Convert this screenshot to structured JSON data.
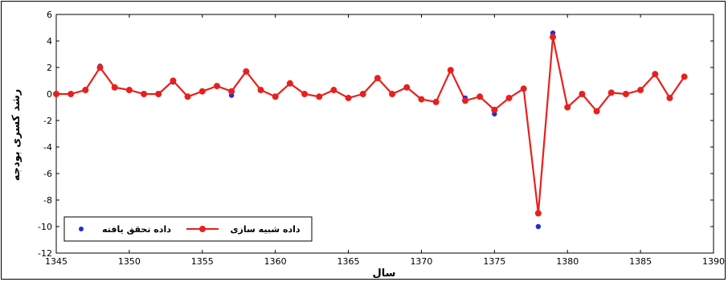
{
  "chart_data": {
    "type": "line",
    "xlabel": "سال",
    "ylabel": "رشد کسری بودجه",
    "xlim": [
      1345,
      1390
    ],
    "ylim": [
      -12,
      6
    ],
    "xticks": [
      1345,
      1350,
      1355,
      1360,
      1365,
      1370,
      1375,
      1380,
      1385,
      1390
    ],
    "yticks": [
      -12,
      -10,
      -8,
      -6,
      -4,
      -2,
      0,
      2,
      4,
      6
    ],
    "grid": false,
    "legend_position": "bottom-left",
    "series": [
      {
        "name": "داده شبیه سازی",
        "style": "line-markers",
        "color": "#e8201d",
        "x": [
          1345,
          1346,
          1347,
          1348,
          1349,
          1350,
          1351,
          1352,
          1353,
          1354,
          1355,
          1356,
          1357,
          1358,
          1359,
          1360,
          1361,
          1362,
          1363,
          1364,
          1365,
          1366,
          1367,
          1368,
          1369,
          1370,
          1371,
          1372,
          1373,
          1374,
          1375,
          1376,
          1377,
          1378,
          1379,
          1380,
          1381,
          1382,
          1383,
          1384,
          1385,
          1386,
          1387,
          1388
        ],
        "y": [
          0,
          0,
          0.3,
          2,
          0.5,
          0.3,
          0,
          0,
          1,
          -0.2,
          0.2,
          0.6,
          0.2,
          1.7,
          0.3,
          -0.2,
          0.8,
          0,
          -0.2,
          0.3,
          -0.3,
          0,
          1.2,
          0,
          0.5,
          -0.4,
          -0.6,
          1.8,
          -0.5,
          -0.2,
          -1.2,
          -0.3,
          0.4,
          -9,
          4.3,
          -1,
          0,
          -1.3,
          0.1,
          0,
          0.3,
          1.5,
          -0.3,
          1.3
        ]
      },
      {
        "name": "داده تحقق یافته",
        "style": "markers",
        "color": "#1f2fd8",
        "x": [
          1345,
          1348,
          1353,
          1357,
          1373,
          1375,
          1378,
          1379,
          1388
        ],
        "y": [
          0,
          2.1,
          0.9,
          -0.1,
          -0.3,
          -1.5,
          -10,
          4.6,
          1.3
        ]
      }
    ]
  }
}
